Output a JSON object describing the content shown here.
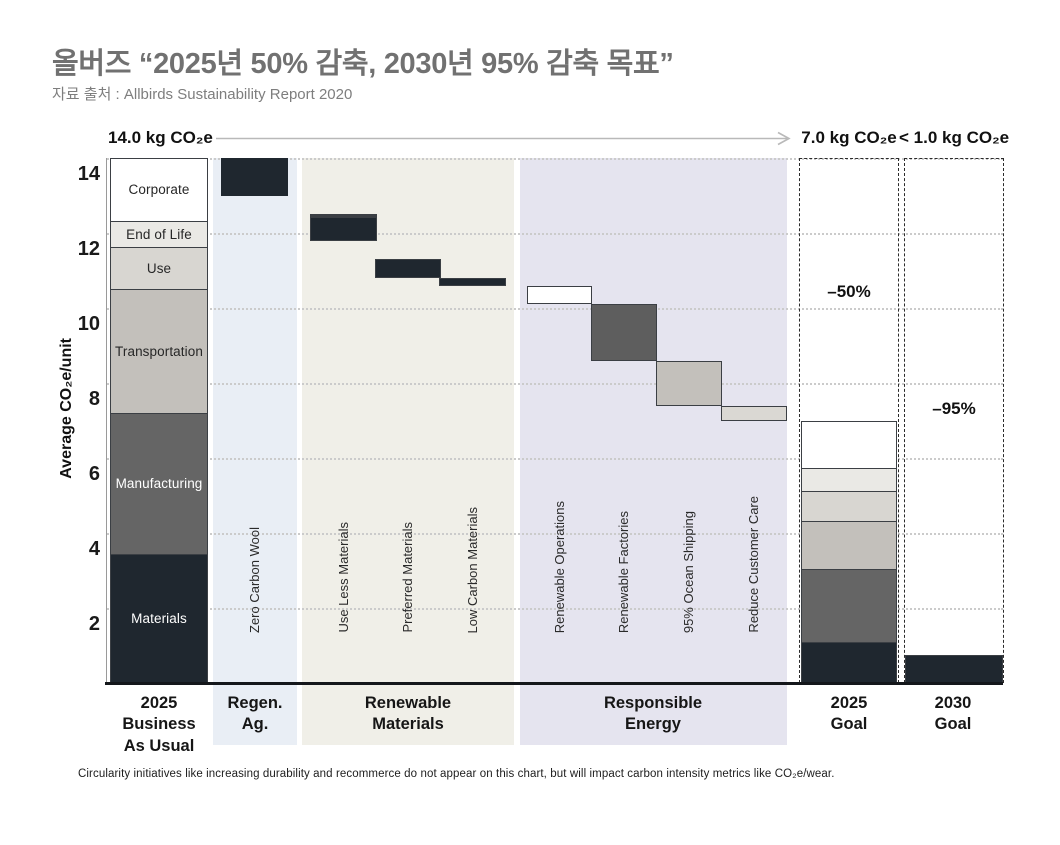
{
  "header": {
    "title": "올버즈 “2025년 50% 감축, 2030년 95% 감축 목표”",
    "source": "자료 출처 : Allbirds Sustainability Report 2020"
  },
  "chart_data": {
    "type": "waterfall",
    "start_label": "14.0 kg CO₂e",
    "mid_label": "7.0 kg CO₂e",
    "end_label": "< 1.0 kg CO₂e",
    "ylabel": "Average CO₂e/unit",
    "ylim": [
      0,
      14
    ],
    "yticks": [
      14,
      12,
      10,
      8,
      6,
      4,
      2
    ],
    "grid": "dotted horizontal line at each ytick, legend none",
    "unit": "kg CO2e per unit",
    "baseline_2025_bau": {
      "label": "2025\nBusiness\nAs Usual",
      "total": 14.0,
      "segments": [
        {
          "name": "Materials",
          "from": 0,
          "to": 3.3,
          "color": "#1f272f",
          "text_color": "#ffffff"
        },
        {
          "name": "Manufacturing",
          "from": 3.3,
          "to": 7.1,
          "color": "#656565",
          "text_color": "#ffffff"
        },
        {
          "name": "Transportation",
          "from": 7.1,
          "to": 10.45,
          "color": "#c3c0bb",
          "text_color": "#272727"
        },
        {
          "name": "Use",
          "from": 10.45,
          "to": 11.6,
          "color": "#d8d6d1",
          "text_color": "#272727"
        },
        {
          "name": "End of Life",
          "from": 11.6,
          "to": 12.35,
          "color": "#eae9e5",
          "text_color": "#272727"
        },
        {
          "name": "Corporate",
          "from": 12.35,
          "to": 14.0,
          "color": "#ffffff",
          "text_color": "#272727"
        }
      ]
    },
    "sections": [
      {
        "id": "regen",
        "label": "Regen.\nAg.",
        "bg": "#e9eef5"
      },
      {
        "id": "materials",
        "label": "Renewable\nMaterials",
        "bg": "#f0efe8"
      },
      {
        "id": "energy",
        "label": "Responsible\nEnergy",
        "bg": "#e5e4ef"
      }
    ],
    "steps": [
      {
        "id": "regen_ag",
        "label": "Zero Carbon Wool",
        "from": 14.0,
        "to": 13.0,
        "color": "#1f272f",
        "borderless": true
      },
      {
        "id": "use_less",
        "label": "Use Less Materials",
        "from": 13.0,
        "to": 11.3,
        "color": "stacked",
        "sub_segments": [
          {
            "from": 13.0,
            "to": 12.5,
            "color": "#eef0ef"
          },
          {
            "from": 12.5,
            "to": 12.0,
            "color": "#e8e7e2"
          },
          {
            "from": 12.0,
            "to": 11.8,
            "color": "#5e5e5e"
          },
          {
            "from": 11.8,
            "to": 11.3,
            "color": "#1f272f"
          }
        ]
      },
      {
        "id": "preferred",
        "label": "Preferred Materials",
        "from": 11.3,
        "to": 10.8,
        "color": "#1f272f"
      },
      {
        "id": "low_carbon",
        "label": "Low Carbon Materials",
        "from": 10.8,
        "to": 10.6,
        "color": "#1f272f"
      },
      {
        "id": "ren_ops",
        "label": "Renewable Operations",
        "from": 10.6,
        "to": 10.1,
        "color": "#ffffff"
      },
      {
        "id": "ren_fact",
        "label": "Renewable Factories",
        "from": 10.1,
        "to": 8.6,
        "color": "#5e5e5e"
      },
      {
        "id": "ocean",
        "label": "95% Ocean Shipping",
        "from": 8.6,
        "to": 7.4,
        "color": "#c3c0bb"
      },
      {
        "id": "cust_care",
        "label": "Reduce Customer Care",
        "from": 7.4,
        "to": 7.0,
        "color": "#dad8d3"
      }
    ],
    "goal_2025": {
      "label": "2025\nGoal",
      "annotation": "–50%",
      "total": 7.0,
      "segments": [
        {
          "name": "Materials",
          "from": 0,
          "to": 0.95,
          "color": "#1f272f"
        },
        {
          "name": "Manufacturing",
          "from": 0.95,
          "to": 2.95,
          "color": "#656565"
        },
        {
          "name": "Transportation",
          "from": 2.95,
          "to": 4.25,
          "color": "#c3c0bb"
        },
        {
          "name": "Use",
          "from": 4.25,
          "to": 5.1,
          "color": "#d8d6d1"
        },
        {
          "name": "End of Life",
          "from": 5.1,
          "to": 5.75,
          "color": "#eae9e5"
        },
        {
          "name": "Corporate",
          "from": 5.75,
          "to": 7.0,
          "color": "#ffffff"
        }
      ]
    },
    "goal_2030": {
      "label": "2030\nGoal",
      "annotation": "–95%",
      "total": 0.75,
      "color": "#1f272f"
    },
    "footnote": "Circularity initiatives like increasing durability and recommerce do not appear on this chart, but will impact carbon intensity metrics like CO₂e/wear."
  }
}
